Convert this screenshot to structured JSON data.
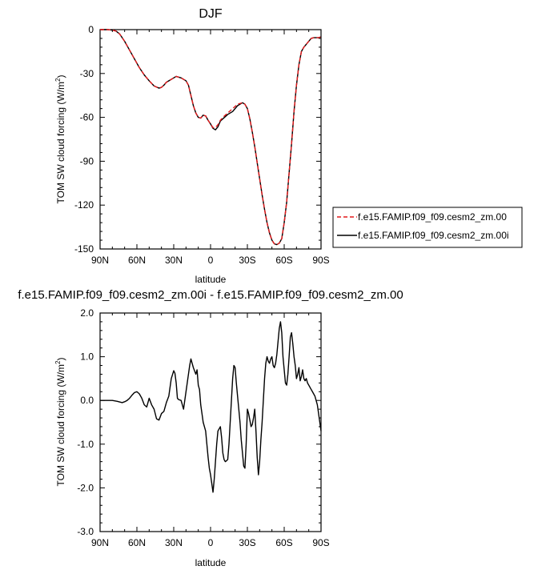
{
  "chart_data": [
    {
      "type": "line",
      "title": "DJF",
      "xlabel": "latitude",
      "ylabel": "TOM SW cloud forcing (W/m",
      "ylabel_sup": "2",
      "ylabel_end": ")",
      "xlim": [
        90,
        -90
      ],
      "ylim": [
        -150,
        0
      ],
      "xticks": [
        90,
        60,
        30,
        0,
        -30,
        -60,
        -90
      ],
      "xtick_labels": [
        "90N",
        "60N",
        "30N",
        "0",
        "30S",
        "60S",
        "90S"
      ],
      "yticks": [
        0,
        -30,
        -60,
        -90,
        -120,
        -150
      ],
      "ytick_labels": [
        "0",
        "-30",
        "-60",
        "-90",
        "-120",
        "-150"
      ],
      "legend_position": "right",
      "series": [
        {
          "name": "f.e15.FAMIP.f09_f09.cesm2_zm.00",
          "color": "#e41a1c",
          "dash": "dashed",
          "x": [
            90,
            84,
            80,
            77,
            74,
            70,
            66,
            62,
            58,
            54,
            50,
            46,
            42,
            40,
            38,
            36,
            32,
            28,
            24,
            20,
            18,
            16,
            14,
            12,
            10,
            8,
            6,
            4,
            2,
            0,
            -2,
            -4,
            -6,
            -8,
            -10,
            -14,
            -18,
            -22,
            -26,
            -28,
            -30,
            -32,
            -34,
            -36,
            -38,
            -40,
            -42,
            -44,
            -46,
            -48,
            -50,
            -52,
            -54,
            -56,
            -58,
            -60,
            -62,
            -64,
            -66,
            -68,
            -70,
            -72,
            -74,
            -76,
            -78,
            -80,
            -82,
            -84,
            -86,
            -88,
            -90
          ],
          "y": [
            0,
            0,
            -0.3,
            -1,
            -3,
            -8,
            -14,
            -20,
            -26,
            -31,
            -35,
            -38.5,
            -40,
            -39.5,
            -38,
            -36,
            -34,
            -32,
            -33,
            -35,
            -38,
            -45,
            -52,
            -57,
            -60,
            -60.5,
            -58.5,
            -59,
            -62,
            -64.5,
            -67,
            -67,
            -65,
            -62,
            -60,
            -57,
            -54,
            -51,
            -50,
            -51,
            -54,
            -61,
            -70,
            -80,
            -91,
            -102,
            -113,
            -123,
            -132,
            -139,
            -144,
            -146.5,
            -147,
            -146,
            -143,
            -132,
            -118,
            -98,
            -78,
            -56,
            -38,
            -24,
            -15,
            -12,
            -10,
            -8,
            -6,
            -5.5,
            -5.5,
            -5.5,
            -5
          ]
        },
        {
          "name": "f.e15.FAMIP.f09_f09.cesm2_zm.00i",
          "color": "#000000",
          "dash": "solid",
          "x": [
            90,
            84,
            80,
            77,
            74,
            70,
            66,
            62,
            58,
            54,
            50,
            46,
            42,
            40,
            38,
            36,
            32,
            28,
            24,
            20,
            18,
            16,
            14,
            12,
            10,
            8,
            6,
            4,
            2,
            0,
            -2,
            -4,
            -6,
            -8,
            -10,
            -14,
            -18,
            -22,
            -26,
            -28,
            -30,
            -32,
            -34,
            -36,
            -38,
            -40,
            -42,
            -44,
            -46,
            -48,
            -50,
            -52,
            -54,
            -56,
            -58,
            -60,
            -62,
            -64,
            -66,
            -68,
            -70,
            -72,
            -74,
            -76,
            -78,
            -80,
            -82,
            -84,
            -86,
            -88,
            -90
          ],
          "y": [
            0,
            0,
            -0.3,
            -1,
            -3,
            -8,
            -14,
            -20,
            -26,
            -31,
            -35,
            -38.5,
            -40,
            -39.5,
            -38,
            -36,
            -34,
            -32,
            -33,
            -35,
            -38,
            -45,
            -52,
            -57,
            -60,
            -60.5,
            -58.5,
            -59,
            -62,
            -64.5,
            -67.5,
            -68.5,
            -66.5,
            -62.5,
            -61,
            -58,
            -56,
            -52,
            -50,
            -51,
            -54,
            -61,
            -70,
            -80,
            -91,
            -102,
            -113,
            -123,
            -132,
            -139,
            -144,
            -146.5,
            -147,
            -146,
            -143,
            -132,
            -118,
            -98,
            -78,
            -56,
            -38,
            -24,
            -15,
            -12,
            -10,
            -8,
            -6,
            -5.5,
            -5.5,
            -5.5,
            -5
          ]
        }
      ]
    },
    {
      "type": "line",
      "title": "f.e15.FAMIP.f09_f09.cesm2_zm.00i - f.e15.FAMIP.f09_f09.cesm2_zm.00",
      "xlabel": "latitude",
      "ylabel": "TOM SW cloud forcing (W/m",
      "ylabel_sup": "2",
      "ylabel_end": ")",
      "xlim": [
        90,
        -90
      ],
      "ylim": [
        -3,
        2
      ],
      "xticks": [
        90,
        60,
        30,
        0,
        -30,
        -60,
        -90
      ],
      "xtick_labels": [
        "90N",
        "60N",
        "30N",
        "0",
        "30S",
        "60S",
        "90S"
      ],
      "yticks": [
        2,
        1,
        0,
        -1,
        -2,
        -3
      ],
      "ytick_labels": [
        "2.0",
        "1.0",
        "0.0",
        "-1.0",
        "-2.0",
        "-3.0"
      ],
      "series": [
        {
          "color": "#000000",
          "dash": "solid",
          "x": [
            90,
            80,
            76,
            72,
            70,
            68,
            66,
            64,
            62,
            60,
            58,
            56,
            54,
            52,
            50,
            48,
            46,
            44,
            42,
            40,
            38,
            36,
            34,
            32,
            30,
            29,
            28,
            27,
            26,
            24,
            22,
            20,
            18,
            17,
            16,
            15,
            14,
            12,
            11,
            10,
            9,
            8,
            7,
            6,
            5,
            4,
            3,
            2,
            1,
            0,
            -1,
            -2,
            -3,
            -4,
            -5,
            -6,
            -7,
            -8,
            -9,
            -10,
            -11,
            -12,
            -13,
            -14,
            -15,
            -16,
            -17,
            -18,
            -19,
            -20,
            -21,
            -22,
            -23,
            -24,
            -25,
            -26,
            -27,
            -28,
            -29,
            -30,
            -31,
            -32,
            -33,
            -34,
            -35,
            -36,
            -37,
            -38,
            -39,
            -40,
            -41,
            -42,
            -43,
            -44,
            -45,
            -46,
            -47,
            -48,
            -49,
            -50,
            -51,
            -52,
            -53,
            -54,
            -55,
            -56,
            -57,
            -58,
            -59,
            -60,
            -61,
            -62,
            -63,
            -64,
            -65,
            -66,
            -67,
            -68,
            -69,
            -70,
            -71,
            -72,
            -73,
            -74,
            -75,
            -76,
            -77,
            -78,
            -79,
            -80,
            -81,
            -82,
            -83,
            -84,
            -85,
            -86,
            -87,
            -88,
            -89,
            -90
          ],
          "y": [
            0,
            0,
            -0.02,
            -0.05,
            -0.03,
            0,
            0.05,
            0.12,
            0.18,
            0.2,
            0.15,
            0.05,
            -0.1,
            -0.15,
            0.05,
            -0.1,
            -0.2,
            -0.42,
            -0.45,
            -0.3,
            -0.25,
            -0.05,
            0.1,
            0.5,
            0.68,
            0.62,
            0.4,
            0.05,
            0.02,
            0.0,
            -0.2,
            0.2,
            0.6,
            0.8,
            0.95,
            0.85,
            0.75,
            0.6,
            0.7,
            0.35,
            0.25,
            -0.1,
            -0.3,
            -0.5,
            -0.6,
            -0.7,
            -1.0,
            -1.3,
            -1.55,
            -1.7,
            -1.9,
            -2.1,
            -1.8,
            -1.4,
            -1.0,
            -0.7,
            -0.65,
            -0.6,
            -0.85,
            -1.2,
            -1.35,
            -1.4,
            -1.38,
            -1.35,
            -1.0,
            -0.5,
            0.0,
            0.5,
            0.8,
            0.75,
            0.4,
            0.1,
            -0.2,
            -0.5,
            -0.9,
            -1.2,
            -1.5,
            -1.55,
            -1.0,
            -0.2,
            -0.3,
            -0.45,
            -0.6,
            -0.55,
            -0.4,
            -0.2,
            -0.7,
            -1.3,
            -1.7,
            -1.4,
            -0.9,
            -0.5,
            0.0,
            0.5,
            0.85,
            1.0,
            0.9,
            0.85,
            0.95,
            1.0,
            0.8,
            0.75,
            0.85,
            1.05,
            1.35,
            1.65,
            1.8,
            1.55,
            1.0,
            0.7,
            0.4,
            0.35,
            0.6,
            1.0,
            1.45,
            1.55,
            1.3,
            1.0,
            0.8,
            0.5,
            0.6,
            0.75,
            0.45,
            0.55,
            0.7,
            0.5,
            0.45,
            0.5,
            0.4,
            0.35,
            0.3,
            0.25,
            0.2,
            0.15,
            0.1,
            0.0,
            -0.1,
            -0.3,
            -0.5,
            -0.7
          ]
        }
      ]
    }
  ]
}
